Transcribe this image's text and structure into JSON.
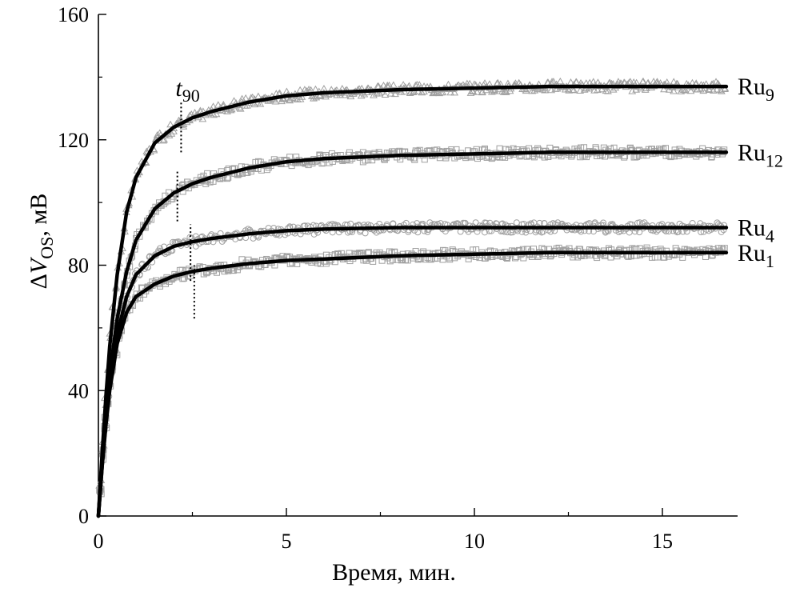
{
  "chart_data": {
    "type": "line",
    "title": "",
    "xlabel": "Время, мин.",
    "ylabel": {
      "prefix": "Δ",
      "var": "V",
      "sub": "OS",
      "suffix": ", мВ"
    },
    "xlim": [
      0,
      17
    ],
    "ylim": [
      0,
      160
    ],
    "xticks": [
      0,
      5,
      10,
      15
    ],
    "yticks": [
      0,
      40,
      80,
      120,
      160
    ],
    "grid": false,
    "legend": "inline labels at right end of curves",
    "t90_label": {
      "var": "t",
      "sub": "90"
    },
    "series": [
      {
        "name": "Ru9",
        "base": "Ru",
        "sub": "9",
        "plateau": 137,
        "t90": 2.2,
        "marker": "triangle",
        "values": [
          [
            0.0,
            0
          ],
          [
            0.1,
            20
          ],
          [
            0.2,
            38
          ],
          [
            0.3,
            54
          ],
          [
            0.5,
            77
          ],
          [
            0.75,
            97
          ],
          [
            1.0,
            108
          ],
          [
            1.5,
            119
          ],
          [
            2.0,
            124
          ],
          [
            2.5,
            127
          ],
          [
            3.0,
            129
          ],
          [
            4.0,
            132
          ],
          [
            5.0,
            134
          ],
          [
            6.0,
            135
          ],
          [
            8.0,
            136
          ],
          [
            10.0,
            136.5
          ],
          [
            12.0,
            137
          ],
          [
            14.0,
            137
          ],
          [
            16.7,
            137
          ]
        ]
      },
      {
        "name": "Ru12",
        "base": "Ru",
        "sub": "12",
        "plateau": 116,
        "t90": 2.1,
        "marker": "square",
        "values": [
          [
            0.0,
            0
          ],
          [
            0.1,
            18
          ],
          [
            0.2,
            33
          ],
          [
            0.3,
            45
          ],
          [
            0.5,
            63
          ],
          [
            0.75,
            78
          ],
          [
            1.0,
            88
          ],
          [
            1.5,
            98
          ],
          [
            2.0,
            103
          ],
          [
            2.5,
            106
          ],
          [
            3.0,
            108
          ],
          [
            4.0,
            111
          ],
          [
            5.0,
            113
          ],
          [
            6.0,
            114
          ],
          [
            8.0,
            115
          ],
          [
            10.0,
            115.5
          ],
          [
            12.0,
            116
          ],
          [
            14.0,
            116
          ],
          [
            16.7,
            116
          ]
        ]
      },
      {
        "name": "Ru4",
        "base": "Ru",
        "sub": "4",
        "plateau": 92,
        "t90": 2.4,
        "marker": "circle",
        "values": [
          [
            0.0,
            0
          ],
          [
            0.1,
            16
          ],
          [
            0.2,
            30
          ],
          [
            0.3,
            42
          ],
          [
            0.5,
            58
          ],
          [
            0.75,
            70
          ],
          [
            1.0,
            77
          ],
          [
            1.5,
            83
          ],
          [
            2.0,
            86
          ],
          [
            2.5,
            87.5
          ],
          [
            3.0,
            88.5
          ],
          [
            4.0,
            90
          ],
          [
            5.0,
            91
          ],
          [
            6.0,
            91.5
          ],
          [
            8.0,
            92
          ],
          [
            10.0,
            92
          ],
          [
            12.0,
            92
          ],
          [
            14.0,
            92
          ],
          [
            16.7,
            92
          ]
        ]
      },
      {
        "name": "Ru1",
        "base": "Ru",
        "sub": "1",
        "plateau": 84,
        "t90": 2.5,
        "marker": "square",
        "values": [
          [
            0.0,
            0
          ],
          [
            0.1,
            16
          ],
          [
            0.2,
            29
          ],
          [
            0.3,
            40
          ],
          [
            0.5,
            55
          ],
          [
            0.75,
            65
          ],
          [
            1.0,
            70
          ],
          [
            1.5,
            74
          ],
          [
            2.0,
            76.5
          ],
          [
            2.5,
            78
          ],
          [
            3.0,
            79
          ],
          [
            4.0,
            80.5
          ],
          [
            5.0,
            81.5
          ],
          [
            6.0,
            82
          ],
          [
            8.0,
            83
          ],
          [
            10.0,
            83.5
          ],
          [
            12.0,
            84
          ],
          [
            14.0,
            84
          ],
          [
            16.7,
            84
          ]
        ]
      }
    ],
    "t90_markers": [
      {
        "x": 2.2,
        "y_from": 116,
        "y_to": 132
      },
      {
        "x": 2.1,
        "y_from": 94,
        "y_to": 110
      },
      {
        "x": 2.45,
        "y_from": 75,
        "y_to": 93
      },
      {
        "x": 2.55,
        "y_from": 63,
        "y_to": 80
      }
    ],
    "colors": {
      "fit": "#000000",
      "data": "#a0a0a0",
      "axis": "#000000"
    }
  }
}
